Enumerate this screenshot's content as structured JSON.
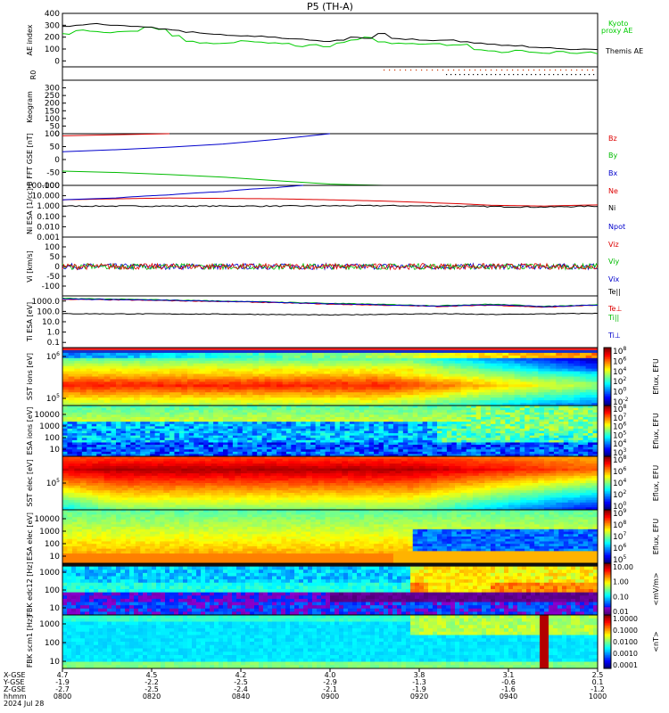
{
  "title": "P5 (TH-A)",
  "chart_data": [
    {
      "type": "line",
      "panel": "AE index",
      "ylabel": "AE index",
      "ylim": [
        -50,
        400
      ],
      "yticks": [
        0,
        100,
        200,
        300,
        400
      ],
      "series": [
        {
          "name": "Kyoto proxy AE",
          "color": "#00cc00",
          "values": [
            230,
            255,
            250,
            240,
            245,
            250,
            285,
            265,
            210,
            165,
            150,
            145,
            150,
            170,
            160,
            150,
            145,
            125,
            135,
            120,
            150,
            175,
            200,
            160,
            145,
            145,
            140,
            145,
            130,
            135,
            95,
            85,
            70,
            90,
            75,
            65,
            80,
            65,
            70,
            60
          ]
        },
        {
          "name": "Themis AE",
          "color": "#000000",
          "values": [
            290,
            300,
            310,
            305,
            300,
            290,
            285,
            270,
            260,
            240,
            235,
            225,
            215,
            210,
            205,
            200,
            190,
            185,
            175,
            165,
            175,
            200,
            190,
            230,
            190,
            180,
            175,
            170,
            175,
            160,
            150,
            140,
            130,
            125,
            115,
            110,
            105,
            95,
            100,
            95
          ]
        }
      ],
      "legend": [
        "Kyoto",
        "proxy AE",
        "Themis AE"
      ]
    },
    {
      "type": "scatter",
      "panel": "R0",
      "ylabel": "R0",
      "series": [
        {
          "name": "R0",
          "color": "#cc3300"
        }
      ]
    },
    {
      "type": "line",
      "panel": "Keogram",
      "ylabel": "Keogram",
      "ylim": [
        0,
        350
      ],
      "yticks": [
        0,
        50,
        100,
        150,
        200,
        250,
        300
      ]
    },
    {
      "type": "line",
      "panel": "B FFT",
      "ylabel": "B FFT GSE [nT]",
      "ylim": [
        -100,
        100
      ],
      "yticks": [
        -100,
        -50,
        0,
        50,
        100
      ],
      "series": [
        {
          "name": "Bz",
          "color": "#dd0000",
          "x": [
            0,
            0.2
          ],
          "values": [
            92,
            100
          ]
        },
        {
          "name": "By",
          "color": "#00bb00",
          "x": [
            0,
            0.1,
            0.2,
            0.3,
            0.4,
            0.5,
            0.6
          ],
          "values": [
            -45,
            -50,
            -58,
            -68,
            -82,
            -95,
            -100
          ]
        },
        {
          "name": "Bx",
          "color": "#0000cc",
          "x": [
            0,
            0.1,
            0.2,
            0.3,
            0.4,
            0.5
          ],
          "values": [
            30,
            38,
            48,
            60,
            78,
            100
          ]
        }
      ]
    },
    {
      "type": "line",
      "panel": "Ni",
      "ylabel": "Ni ESA [1/cc]",
      "scale": "log",
      "yticks": [
        "0.001",
        "0.010",
        "0.100",
        "1.000",
        "10.000",
        "100.000"
      ],
      "series": [
        {
          "name": "Ne",
          "color": "#dd0000",
          "x": [
            0,
            0.1,
            0.2,
            0.4,
            0.6,
            0.7,
            0.8,
            0.9,
            1.0
          ],
          "values": [
            4,
            5,
            6,
            5,
            3,
            2,
            1.2,
            1.0,
            1.3
          ]
        },
        {
          "name": "Ni",
          "color": "#000000",
          "x": [
            0,
            0.2,
            0.4,
            0.6,
            0.7,
            0.8,
            0.9,
            1.0
          ],
          "values": [
            1,
            1,
            1,
            1.1,
            1.0,
            0.9,
            0.8,
            1.0
          ]
        },
        {
          "name": "Npot",
          "color": "#0000cc",
          "x": [
            0,
            0.1,
            0.2,
            0.3,
            0.4,
            0.45
          ],
          "values": [
            4,
            6,
            12,
            25,
            60,
            100
          ]
        }
      ]
    },
    {
      "type": "line",
      "panel": "Vi",
      "ylabel": "Vi [km/s]",
      "ylim": [
        -150,
        150
      ],
      "yticks": [
        -100,
        -50,
        0,
        50,
        100
      ],
      "series": [
        {
          "name": "Viz",
          "color": "#dd0000"
        },
        {
          "name": "Viy",
          "color": "#00bb00"
        },
        {
          "name": "Vix",
          "color": "#0000cc"
        }
      ]
    },
    {
      "type": "line",
      "panel": "Ti",
      "ylabel": "Ti ESA [eV]",
      "scale": "log",
      "yticks": [
        "0.1",
        "1.0",
        "10.0",
        "100.0",
        "1000.0"
      ],
      "series": [
        {
          "name": "Te||",
          "color": "#000000",
          "x": [
            0,
            0.3,
            0.5,
            0.7,
            0.8,
            1.0
          ],
          "values": [
            60,
            55,
            45,
            60,
            50,
            65
          ]
        },
        {
          "name": "Te⊥",
          "color": "#dd0000",
          "x": [
            0,
            0.3,
            0.5,
            0.7,
            0.8,
            0.9,
            1.0
          ],
          "values": [
            1500,
            900,
            500,
            300,
            400,
            250,
            400
          ]
        },
        {
          "name": "Ti||",
          "color": "#00bb00",
          "x": [
            0,
            0.3,
            0.5,
            0.7,
            0.8,
            0.9,
            1.0
          ],
          "values": [
            1800,
            1000,
            600,
            350,
            500,
            300,
            450
          ]
        },
        {
          "name": "Ti⊥",
          "color": "#0000cc",
          "x": [
            0,
            0.3,
            0.5,
            0.7,
            0.8,
            0.9,
            1.0
          ],
          "values": [
            1600,
            950,
            550,
            320,
            450,
            280,
            420
          ]
        }
      ]
    },
    {
      "type": "heatmap",
      "panel": "SST ions",
      "ylabel": "SST ions [eV]",
      "yticks": [
        "10",
        "10"
      ],
      "ytick_sup": [
        "6",
        "5"
      ],
      "colorbar": {
        "label": "Eflux, EFU",
        "ticks": [
          "10",
          "10",
          "10",
          "10",
          "10",
          "10"
        ],
        "tick_sup": [
          "8",
          "6",
          "4",
          "2",
          "0",
          "-2"
        ]
      }
    },
    {
      "type": "heatmap",
      "panel": "ESA ions",
      "ylabel": "ESA ions [eV]",
      "yticks": [
        "10000",
        "1000",
        "100",
        "10"
      ],
      "colorbar": {
        "label": "Eflux, EFU",
        "ticks": [
          "10",
          "10",
          "10",
          "10",
          "10",
          "10"
        ],
        "tick_sup": [
          "8",
          "7",
          "6",
          "5",
          "4",
          "3"
        ]
      }
    },
    {
      "type": "heatmap",
      "panel": "SST elec",
      "ylabel": "SST elec [eV]",
      "yticks": [
        "10"
      ],
      "ytick_sup": [
        "5"
      ],
      "colorbar": {
        "label": "Eflux, EFU",
        "ticks": [
          "10",
          "10",
          "10",
          "10",
          "10"
        ],
        "tick_sup": [
          "8",
          "6",
          "4",
          "2",
          "0"
        ]
      }
    },
    {
      "type": "heatmap",
      "panel": "ESA elec",
      "ylabel": "ESA elec [eV]",
      "yticks": [
        "10000",
        "1000",
        "100",
        "10"
      ],
      "colorbar": {
        "label": "Eflux, EFU",
        "ticks": [
          "10",
          "10",
          "10",
          "10",
          "10"
        ],
        "tick_sup": [
          "9",
          "8",
          "7",
          "6",
          "5"
        ]
      }
    },
    {
      "type": "heatmap",
      "panel": "FBK edc12",
      "ylabel": "FBK edc12 [Hz]",
      "yticks": [
        "1000",
        "100",
        "10"
      ],
      "colorbar": {
        "label": "<mV/m>",
        "ticks": [
          "10.00",
          "1.00",
          "0.10",
          "0.01"
        ]
      }
    },
    {
      "type": "heatmap",
      "panel": "FBK scm1",
      "ylabel": "FBK scm1 [Hz]",
      "yticks": [
        "1000",
        "100",
        "10"
      ],
      "colorbar": {
        "label": "<nT>",
        "ticks": [
          "1.0000",
          "0.1000",
          "0.0100",
          "0.0010",
          "0.0001"
        ]
      }
    }
  ],
  "xaxis": {
    "row_labels": [
      "X-GSE",
      "Y-GSE",
      "Z-GSE",
      "hhmm",
      "2024 Jul 28"
    ],
    "columns": [
      [
        "4.7",
        "-1.9",
        "-2.7",
        "0800"
      ],
      [
        "4.5",
        "-2.2",
        "-2.5",
        "0820"
      ],
      [
        "4.2",
        "-2.5",
        "-2.4",
        "0840"
      ],
      [
        "4.0",
        "-2.9",
        "-2.1",
        "0900"
      ],
      [
        "3.8",
        "-1.3",
        "-1.9",
        "0920"
      ],
      [
        "3.1",
        "-0.6",
        "-1.6",
        "0940"
      ],
      [
        "2.5",
        "0.1",
        "-1.2",
        "1000"
      ]
    ]
  }
}
